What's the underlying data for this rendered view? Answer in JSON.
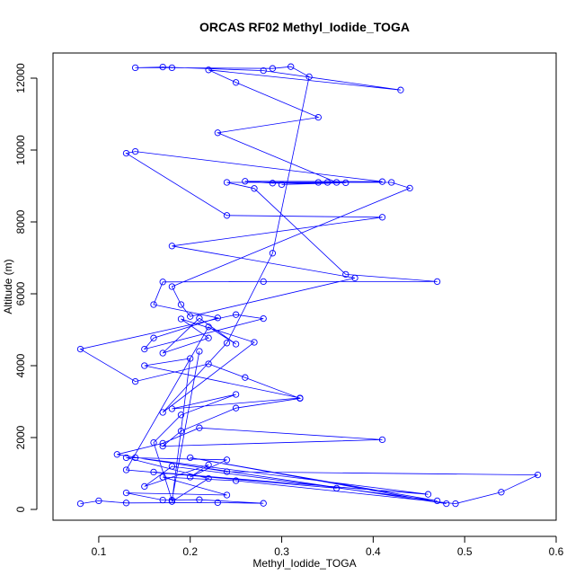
{
  "chart_data": {
    "type": "line",
    "title": "ORCAS RF02 Methyl_Iodide_TOGA",
    "xlabel": "Methyl_Iodide_TOGA",
    "ylabel": "Altitude (m)",
    "xlim": [
      0.05,
      0.6
    ],
    "ylim": [
      -300,
      12700
    ],
    "xticks": [
      0.1,
      0.2,
      0.3,
      0.4,
      0.5,
      0.6
    ],
    "xtick_labels": [
      "0.1",
      "0.2",
      "0.3",
      "0.4",
      "0.5",
      "0.6"
    ],
    "yticks": [
      0,
      2000,
      4000,
      6000,
      8000,
      10000,
      12000
    ],
    "ytick_labels": [
      "0",
      "2000",
      "4000",
      "6000",
      "8000",
      "10000",
      "12000"
    ],
    "grid": false,
    "colors": {
      "series": "#0000ff",
      "axes": "#000000"
    },
    "series": [
      {
        "values": [
          [
            0.08,
            160
          ],
          [
            0.1,
            240
          ],
          [
            0.13,
            180
          ],
          [
            0.23,
            190
          ],
          [
            0.28,
            170
          ],
          [
            0.21,
            270
          ],
          [
            0.17,
            260
          ],
          [
            0.13,
            460
          ],
          [
            0.24,
            400
          ],
          [
            0.17,
            900
          ],
          [
            0.25,
            800
          ],
          [
            0.49,
            160
          ],
          [
            0.54,
            480
          ],
          [
            0.58,
            960
          ],
          [
            0.24,
            1050
          ],
          [
            0.12,
            1530
          ],
          [
            0.17,
            1840
          ],
          [
            0.21,
            2270
          ],
          [
            0.41,
            1940
          ],
          [
            0.17,
            1760
          ],
          [
            0.19,
            2180
          ],
          [
            0.25,
            2820
          ],
          [
            0.32,
            3090
          ],
          [
            0.26,
            3670
          ],
          [
            0.22,
            4050
          ],
          [
            0.14,
            3560
          ],
          [
            0.08,
            4460
          ],
          [
            0.25,
            5420
          ],
          [
            0.28,
            5310
          ],
          [
            0.15,
            4460
          ],
          [
            0.16,
            4770
          ],
          [
            0.23,
            5330
          ],
          [
            0.16,
            5700
          ],
          [
            0.17,
            6330
          ],
          [
            0.28,
            6340
          ],
          [
            0.47,
            6340
          ],
          [
            0.37,
            6540
          ],
          [
            0.27,
            8930
          ],
          [
            0.24,
            9100
          ],
          [
            0.42,
            9100
          ],
          [
            0.44,
            8940
          ],
          [
            0.18,
            6200
          ],
          [
            0.19,
            5700
          ],
          [
            0.2,
            5370
          ],
          [
            0.38,
            6440
          ],
          [
            0.18,
            7330
          ],
          [
            0.41,
            8130
          ],
          [
            0.24,
            8180
          ],
          [
            0.13,
            9910
          ],
          [
            0.14,
            9960
          ],
          [
            0.41,
            9120
          ],
          [
            0.26,
            9130
          ],
          [
            0.29,
            9080
          ],
          [
            0.37,
            9090
          ],
          [
            0.3,
            9040
          ],
          [
            0.35,
            9100
          ],
          [
            0.34,
            9100
          ],
          [
            0.36,
            9100
          ],
          [
            0.23,
            10480
          ],
          [
            0.34,
            10910
          ],
          [
            0.25,
            11880
          ],
          [
            0.22,
            12230
          ],
          [
            0.43,
            11670
          ],
          [
            0.28,
            12210
          ],
          [
            0.17,
            12310
          ],
          [
            0.14,
            12290
          ],
          [
            0.18,
            12290
          ],
          [
            0.29,
            12270
          ],
          [
            0.31,
            12320
          ],
          [
            0.33,
            12040
          ],
          [
            0.29,
            7130
          ],
          [
            0.24,
            4630
          ],
          [
            0.17,
            2700
          ],
          [
            0.27,
            4650
          ],
          [
            0.19,
            5300
          ],
          [
            0.22,
            4770
          ],
          [
            0.17,
            4350
          ],
          [
            0.21,
            5320
          ],
          [
            0.25,
            4600
          ],
          [
            0.22,
            5080
          ],
          [
            0.13,
            1100
          ],
          [
            0.36,
            590
          ],
          [
            0.16,
            1040
          ],
          [
            0.46,
            420
          ],
          [
            0.14,
            1440
          ],
          [
            0.48,
            160
          ],
          [
            0.2,
            1440
          ],
          [
            0.47,
            240
          ],
          [
            0.18,
            1200
          ],
          [
            0.15,
            640
          ],
          [
            0.22,
            1240
          ],
          [
            0.2,
            900
          ],
          [
            0.24,
            1380
          ],
          [
            0.13,
            1440
          ],
          [
            0.22,
            860
          ],
          [
            0.18,
            220
          ],
          [
            0.2,
            4200
          ],
          [
            0.15,
            4000
          ],
          [
            0.32,
            3100
          ],
          [
            0.18,
            2800
          ],
          [
            0.25,
            3200
          ],
          [
            0.19,
            2630
          ],
          [
            0.16,
            1860
          ],
          [
            0.18,
            260
          ],
          [
            0.21,
            4400
          ]
        ]
      }
    ]
  }
}
